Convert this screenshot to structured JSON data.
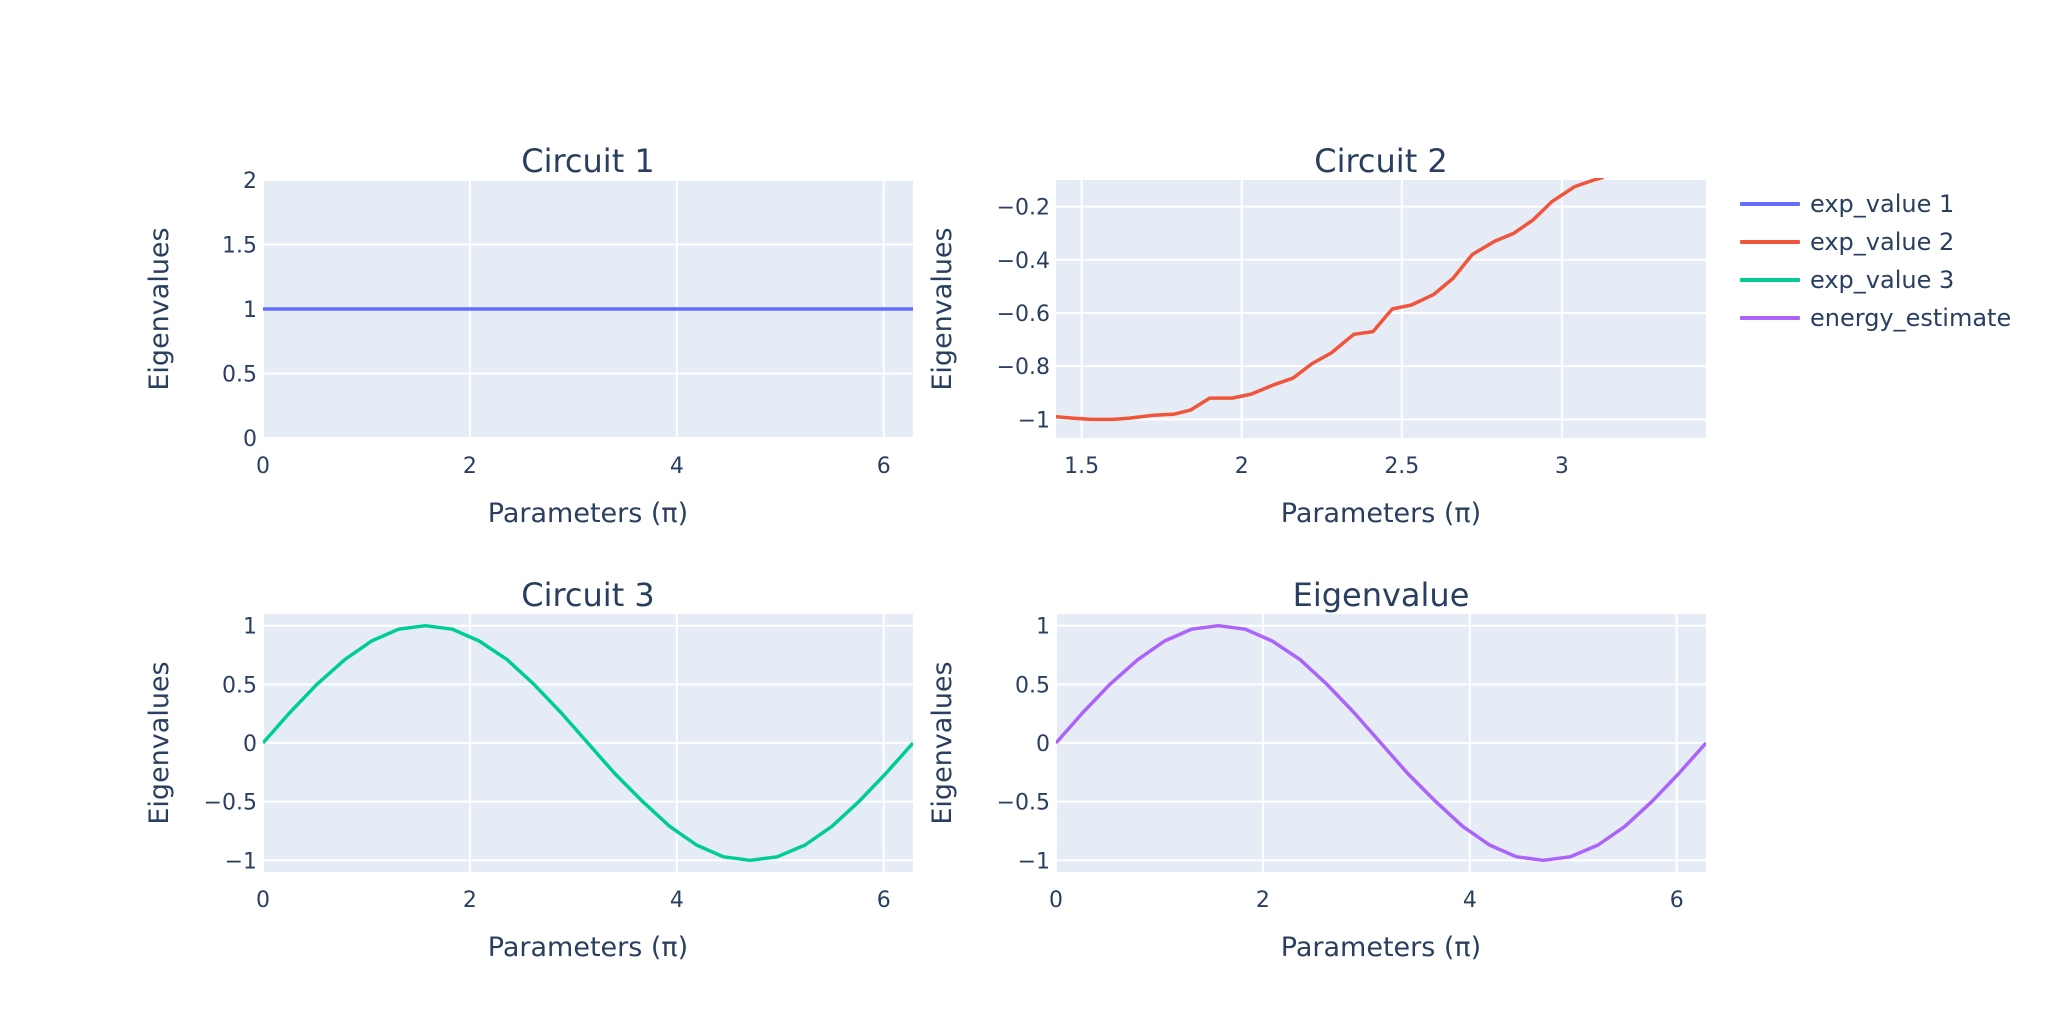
{
  "colors": {
    "plot_bg": "#e5ecf6",
    "grid": "#ffffff",
    "text": "#2a3f5f",
    "exp_value_1": "#636efa",
    "exp_value_2": "#ef553b",
    "exp_value_3": "#00cc96",
    "energy_estimate": "#ab63fa"
  },
  "legend": {
    "placement": "right",
    "items": [
      {
        "label": "exp_value 1",
        "color": "#636efa"
      },
      {
        "label": "exp_value 2",
        "color": "#ef553b"
      },
      {
        "label": "exp_value 3",
        "color": "#00cc96"
      },
      {
        "label": "energy_estimate",
        "color": "#ab63fa"
      }
    ]
  },
  "chart_data": [
    {
      "type": "line",
      "title": "Circuit 1",
      "xlabel": "Parameters (π)",
      "ylabel": "Eigenvalues",
      "xlim": [
        0,
        6.283
      ],
      "ylim": [
        0,
        2
      ],
      "xticks": [
        0,
        2,
        4,
        6
      ],
      "xtick_labels": [
        "0",
        "2",
        "4",
        "6"
      ],
      "yticks": [
        0,
        0.5,
        1,
        1.5,
        2
      ],
      "ytick_labels": [
        "0",
        "0.5",
        "1",
        "1.5",
        "2"
      ],
      "grid": true,
      "series": [
        {
          "name": "exp_value 1",
          "color": "#636efa",
          "x": [
            0,
            0.5,
            1,
            1.5,
            2,
            2.5,
            3,
            3.5,
            4,
            4.5,
            5,
            5.5,
            6,
            6.283
          ],
          "y": [
            1,
            1,
            1,
            1,
            1,
            1,
            1,
            1,
            1,
            1,
            1,
            1,
            1,
            1
          ]
        }
      ]
    },
    {
      "type": "line",
      "title": "Circuit 2",
      "xlabel": "Parameters (π)",
      "ylabel": "Eigenvalues",
      "xlim": [
        1.42,
        3.45
      ],
      "ylim": [
        -1.07,
        -0.1
      ],
      "xticks": [
        1.5,
        2,
        2.5,
        3
      ],
      "xtick_labels": [
        "1.5",
        "2",
        "2.5",
        "3"
      ],
      "yticks": [
        -1,
        -0.8,
        -0.6,
        -0.4,
        -0.2
      ],
      "ytick_labels": [
        "−1",
        "−0.8",
        "−0.6",
        "−0.4",
        "−0.2"
      ],
      "grid": true,
      "series": [
        {
          "name": "exp_value 2",
          "color": "#ef553b",
          "x": [
            1.42,
            1.47,
            1.53,
            1.6,
            1.65,
            1.72,
            1.79,
            1.84,
            1.9,
            1.97,
            2.03,
            2.1,
            2.16,
            2.22,
            2.28,
            2.35,
            2.41,
            2.47,
            2.53,
            2.6,
            2.66,
            2.72,
            2.79,
            2.85,
            2.91,
            2.97,
            3.04,
            3.1,
            3.13
          ],
          "y": [
            -0.99,
            -0.995,
            -1.0,
            -1.0,
            -0.995,
            -0.985,
            -0.98,
            -0.965,
            -0.92,
            -0.92,
            -0.905,
            -0.87,
            -0.845,
            -0.79,
            -0.75,
            -0.68,
            -0.67,
            -0.585,
            -0.57,
            -0.53,
            -0.47,
            -0.38,
            -0.33,
            -0.3,
            -0.25,
            -0.18,
            -0.125,
            -0.1,
            -0.09
          ]
        }
      ]
    },
    {
      "type": "line",
      "title": "Circuit 3",
      "xlabel": "Parameters (π)",
      "ylabel": "Eigenvalues",
      "xlim": [
        0,
        6.283
      ],
      "ylim": [
        -1.1,
        1.1
      ],
      "xticks": [
        0,
        2,
        4,
        6
      ],
      "xtick_labels": [
        "0",
        "2",
        "4",
        "6"
      ],
      "yticks": [
        -1,
        -0.5,
        0,
        0.5,
        1
      ],
      "ytick_labels": [
        "−1",
        "−0.5",
        "0",
        "0.5",
        "1"
      ],
      "grid": true,
      "series": [
        {
          "name": "exp_value 3",
          "color": "#00cc96",
          "x": [
            0,
            0.26,
            0.52,
            0.79,
            1.05,
            1.31,
            1.57,
            1.83,
            2.09,
            2.36,
            2.62,
            2.88,
            3.14,
            3.4,
            3.67,
            3.93,
            4.19,
            4.45,
            4.71,
            4.97,
            5.24,
            5.5,
            5.76,
            6.02,
            6.283
          ],
          "y": [
            0,
            0.26,
            0.5,
            0.71,
            0.87,
            0.97,
            1,
            0.97,
            0.87,
            0.71,
            0.5,
            0.26,
            0,
            -0.26,
            -0.5,
            -0.71,
            -0.87,
            -0.97,
            -1,
            -0.97,
            -0.87,
            -0.71,
            -0.5,
            -0.26,
            0
          ]
        }
      ]
    },
    {
      "type": "line",
      "title": "Eigenvalue",
      "xlabel": "Parameters (π)",
      "ylabel": "Eigenvalues",
      "xlim": [
        0,
        6.283
      ],
      "ylim": [
        -1.1,
        1.1
      ],
      "xticks": [
        0,
        2,
        4,
        6
      ],
      "xtick_labels": [
        "0",
        "2",
        "4",
        "6"
      ],
      "yticks": [
        -1,
        -0.5,
        0,
        0.5,
        1
      ],
      "ytick_labels": [
        "−1",
        "−0.5",
        "0",
        "0.5",
        "1"
      ],
      "grid": true,
      "series": [
        {
          "name": "energy_estimate",
          "color": "#ab63fa",
          "x": [
            0,
            0.26,
            0.52,
            0.79,
            1.05,
            1.31,
            1.57,
            1.83,
            2.09,
            2.36,
            2.62,
            2.88,
            3.14,
            3.4,
            3.67,
            3.93,
            4.19,
            4.45,
            4.71,
            4.97,
            5.24,
            5.5,
            5.76,
            6.02,
            6.283
          ],
          "y": [
            0,
            0.26,
            0.5,
            0.71,
            0.87,
            0.97,
            1,
            0.97,
            0.87,
            0.71,
            0.5,
            0.26,
            0,
            -0.26,
            -0.5,
            -0.71,
            -0.87,
            -0.97,
            -1,
            -0.97,
            -0.87,
            -0.71,
            -0.5,
            -0.26,
            0
          ]
        }
      ]
    }
  ]
}
